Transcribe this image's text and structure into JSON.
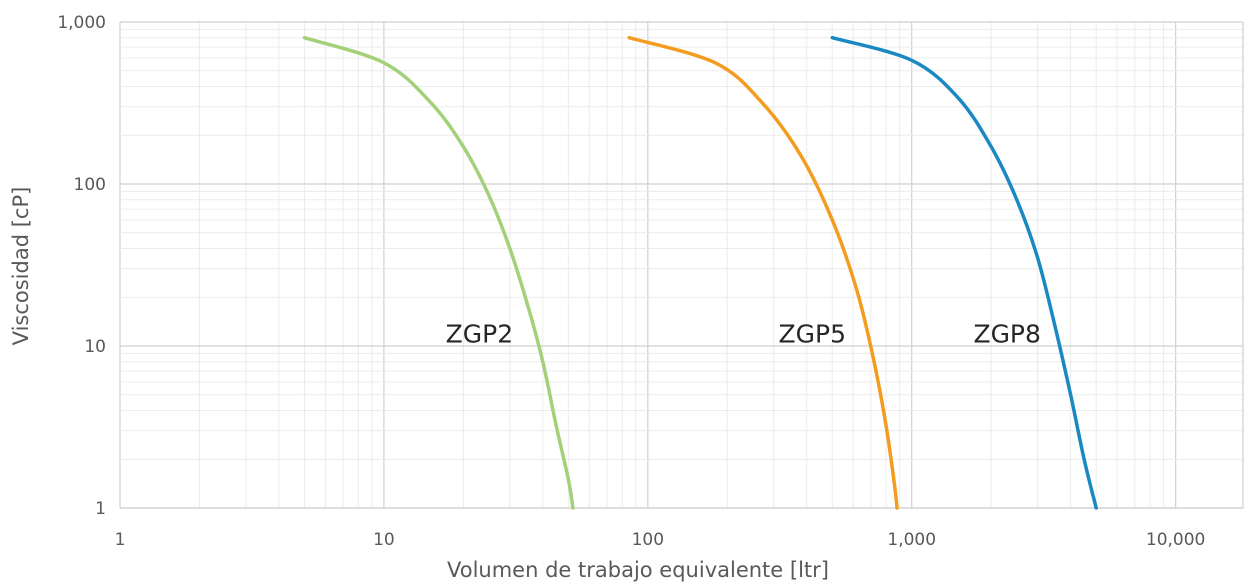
{
  "chart_data": {
    "type": "line",
    "xlabel": "Volumen de trabajo equivalente [ltr]",
    "ylabel": "Viscosidad [cP]",
    "x_scale": "log",
    "y_scale": "log",
    "xlim": [
      1,
      18000
    ],
    "ylim": [
      1,
      1000
    ],
    "grid": true,
    "x_ticks": [
      {
        "value": 1,
        "label": "1"
      },
      {
        "value": 10,
        "label": "10"
      },
      {
        "value": 100,
        "label": "100"
      },
      {
        "value": 1000,
        "label": "1,000"
      },
      {
        "value": 10000,
        "label": "10,000"
      }
    ],
    "y_ticks": [
      {
        "value": 1,
        "label": "1"
      },
      {
        "value": 10,
        "label": "10"
      },
      {
        "value": 100,
        "label": "100"
      },
      {
        "value": 1000,
        "label": "1,000"
      }
    ],
    "series": [
      {
        "name": "ZGP2",
        "color": "#a3d17a",
        "label_at": [
          23,
          10.5
        ],
        "x": [
          5,
          10,
          15,
          20,
          25,
          30,
          35,
          40,
          45,
          50,
          52
        ],
        "y": [
          800,
          560,
          320,
          170,
          85,
          40,
          18,
          8,
          3.2,
          1.5,
          1
        ]
      },
      {
        "name": "ZGP5",
        "color": "#f39c1f",
        "label_at": [
          420,
          10.5
        ],
        "x": [
          85,
          180,
          270,
          380,
          500,
          620,
          720,
          800,
          860,
          880
        ],
        "y": [
          800,
          560,
          320,
          150,
          60,
          22,
          8,
          3.2,
          1.4,
          1
        ]
      },
      {
        "name": "ZGP8",
        "color": "#1a88c2",
        "label_at": [
          2300,
          10.5
        ],
        "x": [
          500,
          1000,
          1500,
          2000,
          2500,
          3000,
          3500,
          4000,
          4500,
          5000
        ],
        "y": [
          800,
          580,
          340,
          170,
          80,
          35,
          13,
          5,
          2,
          1
        ]
      }
    ]
  }
}
